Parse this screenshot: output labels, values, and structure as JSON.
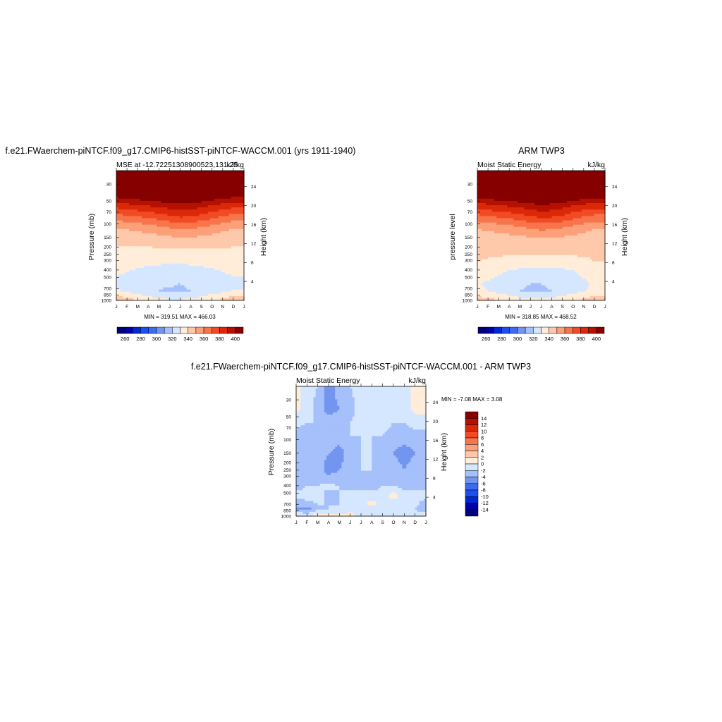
{
  "chart_data": [
    {
      "type": "heatmap",
      "title": "f.e21.FWaerchem-piNTCF.f09_g17.CMIP6-histSST-piNTCF-WACCM.001 (yrs 1911-1940)",
      "subtitle_left": "MSE at -12.72251308900523,131.25",
      "subtitle_right": "kJ/kg",
      "ylabel": "Pressure (mb)",
      "ylabel_right": "Height (km)",
      "x_ticks": [
        "J",
        "F",
        "M",
        "A",
        "M",
        "J",
        "J",
        "A",
        "S",
        "O",
        "N",
        "D",
        "J"
      ],
      "y_ticks": [
        30,
        50,
        70,
        100,
        150,
        200,
        250,
        300,
        400,
        500,
        700,
        850,
        1000
      ],
      "height_ticks": [
        4,
        8,
        12,
        16,
        20,
        24
      ],
      "ylim": [
        1000,
        20
      ],
      "minmax": "MIN = 319.51 MAX = 466.03",
      "colorbar_ticks": [
        260,
        280,
        300,
        320,
        340,
        360,
        380,
        400
      ],
      "colorbar_levels": [
        250,
        260,
        270,
        280,
        290,
        300,
        310,
        320,
        330,
        340,
        350,
        360,
        370,
        380,
        390,
        400,
        410
      ],
      "levels": [
        {
          "level_mb": 20,
          "values": [
            466,
            466,
            466,
            466,
            466,
            466,
            466,
            466,
            466,
            466,
            466,
            466,
            466
          ]
        },
        {
          "level_mb": 45,
          "values": [
            400,
            402,
            404,
            406,
            408,
            410,
            411,
            410,
            408,
            405,
            402,
            400,
            400
          ]
        },
        {
          "level_mb": 60,
          "values": [
            382,
            384,
            386,
            388,
            390,
            393,
            395,
            394,
            391,
            387,
            384,
            382,
            382
          ]
        },
        {
          "level_mb": 80,
          "values": [
            366,
            368,
            370,
            372,
            375,
            378,
            381,
            380,
            377,
            373,
            369,
            366,
            366
          ]
        },
        {
          "level_mb": 110,
          "values": [
            351,
            352,
            354,
            356,
            358,
            361,
            363,
            362,
            360,
            357,
            354,
            351,
            351
          ]
        },
        {
          "level_mb": 160,
          "values": [
            341,
            342,
            343,
            344,
            345,
            346,
            347,
            347,
            346,
            345,
            343,
            341,
            341
          ]
        },
        {
          "level_mb": 250,
          "values": [
            339,
            338,
            337,
            336,
            336,
            335,
            335,
            336,
            337,
            337,
            338,
            339,
            339
          ]
        },
        {
          "level_mb": 400,
          "values": [
            333,
            331,
            329,
            328,
            327,
            327,
            327,
            327,
            328,
            329,
            331,
            333,
            333
          ]
        },
        {
          "level_mb": 600,
          "values": [
            327,
            325,
            323,
            322,
            321,
            321,
            320,
            321,
            322,
            323,
            325,
            327,
            327
          ]
        },
        {
          "level_mb": 750,
          "values": [
            331,
            328,
            324,
            321,
            320,
            319,
            319,
            320,
            321,
            323,
            327,
            331,
            331
          ]
        },
        {
          "level_mb": 850,
          "values": [
            338,
            336,
            332,
            328,
            326,
            325,
            325,
            326,
            328,
            331,
            335,
            338,
            338
          ]
        },
        {
          "level_mb": 1000,
          "values": [
            346,
            344,
            340,
            335,
            332,
            331,
            331,
            332,
            334,
            338,
            342,
            346,
            346
          ]
        }
      ]
    },
    {
      "type": "heatmap",
      "title": "ARM TWP3",
      "subtitle_left": "Moist Static Energy",
      "subtitle_right": "kJ/kg",
      "ylabel": "pressure level",
      "ylabel_right": "Height (km)",
      "x_ticks": [
        "J",
        "F",
        "M",
        "A",
        "M",
        "J",
        "J",
        "A",
        "S",
        "O",
        "N",
        "D",
        "J"
      ],
      "y_ticks": [
        30,
        50,
        70,
        100,
        150,
        200,
        250,
        300,
        400,
        500,
        700,
        850,
        1000
      ],
      "height_ticks": [
        4,
        8,
        12,
        16,
        20,
        24
      ],
      "ylim": [
        1000,
        20
      ],
      "minmax": "MIN = 318.85 MAX = 468.52",
      "colorbar_ticks": [
        260,
        280,
        300,
        320,
        340,
        360,
        380,
        400
      ],
      "colorbar_levels": [
        250,
        260,
        270,
        280,
        290,
        300,
        310,
        320,
        330,
        340,
        350,
        360,
        370,
        380,
        390,
        400,
        410
      ],
      "levels": [
        {
          "level_mb": 20,
          "values": [
            468,
            468,
            468,
            468,
            468,
            468,
            468,
            468,
            468,
            468,
            468,
            468,
            468
          ]
        },
        {
          "level_mb": 45,
          "values": [
            401,
            403,
            405,
            407,
            409,
            411,
            412,
            411,
            409,
            406,
            403,
            401,
            401
          ]
        },
        {
          "level_mb": 60,
          "values": [
            383,
            385,
            387,
            389,
            391,
            394,
            396,
            395,
            392,
            388,
            385,
            383,
            383
          ]
        },
        {
          "level_mb": 80,
          "values": [
            367,
            369,
            371,
            373,
            376,
            379,
            382,
            381,
            378,
            374,
            370,
            367,
            367
          ]
        },
        {
          "level_mb": 110,
          "values": [
            352,
            353,
            355,
            357,
            359,
            362,
            364,
            363,
            361,
            358,
            355,
            352,
            352
          ]
        },
        {
          "level_mb": 160,
          "values": [
            342,
            343,
            344,
            345,
            346,
            347,
            348,
            348,
            347,
            346,
            344,
            342,
            342
          ]
        },
        {
          "level_mb": 250,
          "values": [
            341,
            341,
            341,
            341,
            341,
            341,
            341,
            341,
            341,
            341,
            341,
            341,
            341
          ]
        },
        {
          "level_mb": 400,
          "values": [
            339,
            337,
            333,
            330,
            329,
            328,
            328,
            328,
            329,
            330,
            334,
            339,
            339
          ]
        },
        {
          "level_mb": 600,
          "values": [
            331,
            328,
            325,
            322,
            321,
            320,
            320,
            321,
            322,
            324,
            328,
            331,
            331
          ]
        },
        {
          "level_mb": 750,
          "values": [
            333,
            330,
            326,
            322,
            320,
            319,
            319,
            320,
            321,
            324,
            329,
            333,
            333
          ]
        },
        {
          "level_mb": 850,
          "values": [
            338,
            336,
            333,
            329,
            327,
            326,
            326,
            327,
            329,
            332,
            336,
            338,
            338
          ]
        },
        {
          "level_mb": 1000,
          "values": [
            345,
            343,
            340,
            336,
            333,
            332,
            332,
            333,
            335,
            339,
            342,
            345,
            345
          ]
        }
      ]
    },
    {
      "type": "heatmap",
      "title": "f.e21.FWaerchem-piNTCF.f09_g17.CMIP6-histSST-piNTCF-WACCM.001 - ARM TWP3",
      "subtitle_left": "Moist Static Energy",
      "subtitle_right": "kJ/kg",
      "ylabel": "Pressure (mb)",
      "ylabel_right": "Height (km)",
      "x_ticks": [
        "J",
        "F",
        "M",
        "A",
        "M",
        "J",
        "J",
        "A",
        "S",
        "O",
        "N",
        "D",
        "J"
      ],
      "y_ticks": [
        30,
        50,
        70,
        100,
        150,
        200,
        250,
        300,
        400,
        500,
        700,
        850,
        1000
      ],
      "height_ticks": [
        4,
        8,
        12,
        16,
        20,
        24
      ],
      "ylim": [
        1000,
        20
      ],
      "minmax": "MIN =  -7.08 MAX =   3.08",
      "colorbar_ticks": [
        14,
        12,
        10,
        8,
        6,
        4,
        2,
        0,
        -2,
        -4,
        -6,
        -8,
        -10,
        -12,
        -14
      ],
      "colorbar_levels": [
        -16,
        -14,
        -12,
        -10,
        -8,
        -6,
        -4,
        -2,
        0,
        2,
        4,
        6,
        8,
        10,
        12,
        14,
        16
      ],
      "levels": [
        {
          "level_mb": 20,
          "values": [
            1,
            -1,
            -2,
            -5,
            -3,
            -2,
            -1,
            -1,
            -2,
            -1,
            -1,
            1,
            1
          ]
        },
        {
          "level_mb": 40,
          "values": [
            0.5,
            -1,
            -3,
            -5,
            -4,
            -3,
            -1,
            -1,
            -2,
            -1,
            -1,
            0.5,
            0.5
          ]
        },
        {
          "level_mb": 60,
          "values": [
            -1,
            -2,
            -2,
            -3,
            -2,
            -2,
            -1,
            -1,
            -1,
            -2,
            -2,
            -1,
            -1
          ]
        },
        {
          "level_mb": 90,
          "values": [
            -3,
            -4,
            -3,
            -2,
            -3,
            -2,
            -2,
            -2,
            -2,
            -3,
            -3,
            -3,
            -3
          ]
        },
        {
          "level_mb": 150,
          "values": [
            -2,
            -3,
            -3,
            -4,
            -5,
            -3,
            -2,
            -2,
            -3,
            -4,
            -5,
            -4,
            -2
          ]
        },
        {
          "level_mb": 250,
          "values": [
            -2,
            -2,
            -3,
            -5,
            -4,
            -3,
            -2,
            -2,
            -2,
            -3,
            -4,
            -3,
            -2
          ]
        },
        {
          "level_mb": 400,
          "values": [
            -3,
            -2,
            -2,
            -1.5,
            -2,
            -3,
            -3,
            -3,
            -2,
            -2,
            -3,
            -3,
            -3
          ]
        },
        {
          "level_mb": 550,
          "values": [
            -1,
            -1,
            -1,
            -3,
            -2,
            -1,
            -1,
            -1,
            -1,
            1,
            -1,
            -1,
            -1
          ]
        },
        {
          "level_mb": 700,
          "values": [
            -4,
            -3,
            -2,
            -2,
            -2,
            -1,
            -1,
            1,
            -1,
            -1,
            -1,
            -1,
            -4
          ]
        },
        {
          "level_mb": 800,
          "values": [
            -4,
            -5,
            -3,
            -2,
            -2,
            -1,
            -1,
            -1,
            -1,
            -1,
            -2,
            -2,
            -4
          ]
        },
        {
          "level_mb": 1000,
          "values": [
            1,
            -1,
            2,
            1,
            1,
            1,
            -1,
            -1,
            -1,
            -2,
            -2,
            -1,
            1
          ]
        }
      ]
    }
  ],
  "colors": {
    "colormap": [
      "#00007a",
      "#0000a8",
      "#0027d6",
      "#1c4ff0",
      "#3c6bf0",
      "#7395f0",
      "#a5c0fa",
      "#d4e7fe",
      "#ffedd9",
      "#fec8aa",
      "#fca07a",
      "#f8754b",
      "#f24a24",
      "#db2808",
      "#b51000",
      "#870000"
    ],
    "frame": "#000000",
    "background": "#ffffff"
  }
}
